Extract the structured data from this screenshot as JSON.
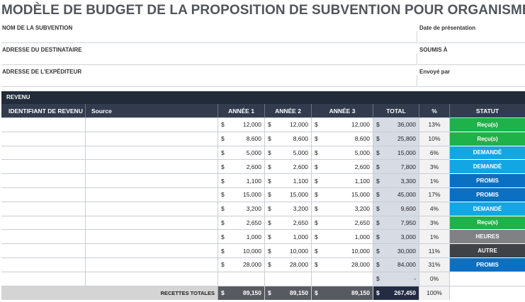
{
  "title": "MODÈLE DE BUDGET DE LA PROPOSITION DE SUBVENTION POUR ORGANISME À BUT NON LUCRATIF",
  "form": {
    "rows": [
      {
        "left": "NOM DE LA SUBVENTION",
        "right": "Date de présentation"
      },
      {
        "left": "ADRESSE DU DESTINATAIRE",
        "right": "SOUMIS À"
      },
      {
        "left": "ADRESSE DE L'EXPÉDITEUR",
        "right": "Envoyé par"
      }
    ]
  },
  "section": {
    "title": "REVENU"
  },
  "headers": {
    "id": "IDENTIFIANT DE REVENU",
    "source": "Source",
    "y1": "ANNÉE 1",
    "y2": "ANNÉE 2",
    "y3": "ANNÉE 3",
    "total": "TOTAL",
    "pct": "%",
    "status": "STATUT"
  },
  "currency": "$",
  "status_colors": {
    "Reçu(s)": "#1fb14a",
    "DEMANDÉ": "#12a7e3",
    "PROMIS": "#0b6fc2",
    "HEURES": "#7f8185",
    "AUTRE": "#3f4247"
  },
  "rows": [
    {
      "y1": "12,000",
      "y2": "12,000",
      "y3": "12,000",
      "total": "36,000",
      "pct": "13%",
      "status": "Reçu(s)"
    },
    {
      "y1": "8,600",
      "y2": "8,600",
      "y3": "8,600",
      "total": "25,800",
      "pct": "10%",
      "status": "Reçu(s)"
    },
    {
      "y1": "5,000",
      "y2": "5,000",
      "y3": "5,000",
      "total": "15,000",
      "pct": "6%",
      "status": "DEMANDÉ"
    },
    {
      "y1": "2,600",
      "y2": "2,600",
      "y3": "2,600",
      "total": "7,800",
      "pct": "3%",
      "status": "DEMANDÉ"
    },
    {
      "y1": "1,100",
      "y2": "1,100",
      "y3": "1,100",
      "total": "3,300",
      "pct": "1%",
      "status": "PROMIS"
    },
    {
      "y1": "15,000",
      "y2": "15,000",
      "y3": "15,000",
      "total": "45,000",
      "pct": "17%",
      "status": "PROMIS"
    },
    {
      "y1": "3,200",
      "y2": "3,200",
      "y3": "3,200",
      "total": "9,600",
      "pct": "4%",
      "status": "DEMANDÉ"
    },
    {
      "y1": "2,650",
      "y2": "2,650",
      "y3": "2,650",
      "total": "7,950",
      "pct": "3%",
      "status": "Reçu(s)"
    },
    {
      "y1": "1,000",
      "y2": "1,000",
      "y3": "1,000",
      "total": "3,000",
      "pct": "1%",
      "status": "HEURES"
    },
    {
      "y1": "10,000",
      "y2": "10,000",
      "y3": "10,000",
      "total": "30,000",
      "pct": "11%",
      "status": "AUTRE"
    },
    {
      "y1": "28,000",
      "y2": "28,000",
      "y3": "28,000",
      "total": "84,000",
      "pct": "31%",
      "status": "PROMIS"
    },
    {
      "y1": "",
      "y2": "",
      "y3": "",
      "total": "-",
      "pct": "0%",
      "status": ""
    }
  ],
  "footer": {
    "label": "RECETTES TOTALES",
    "y1": "89,150",
    "y2": "89,150",
    "y3": "89,150",
    "total": "267,450",
    "pct": "100%"
  }
}
